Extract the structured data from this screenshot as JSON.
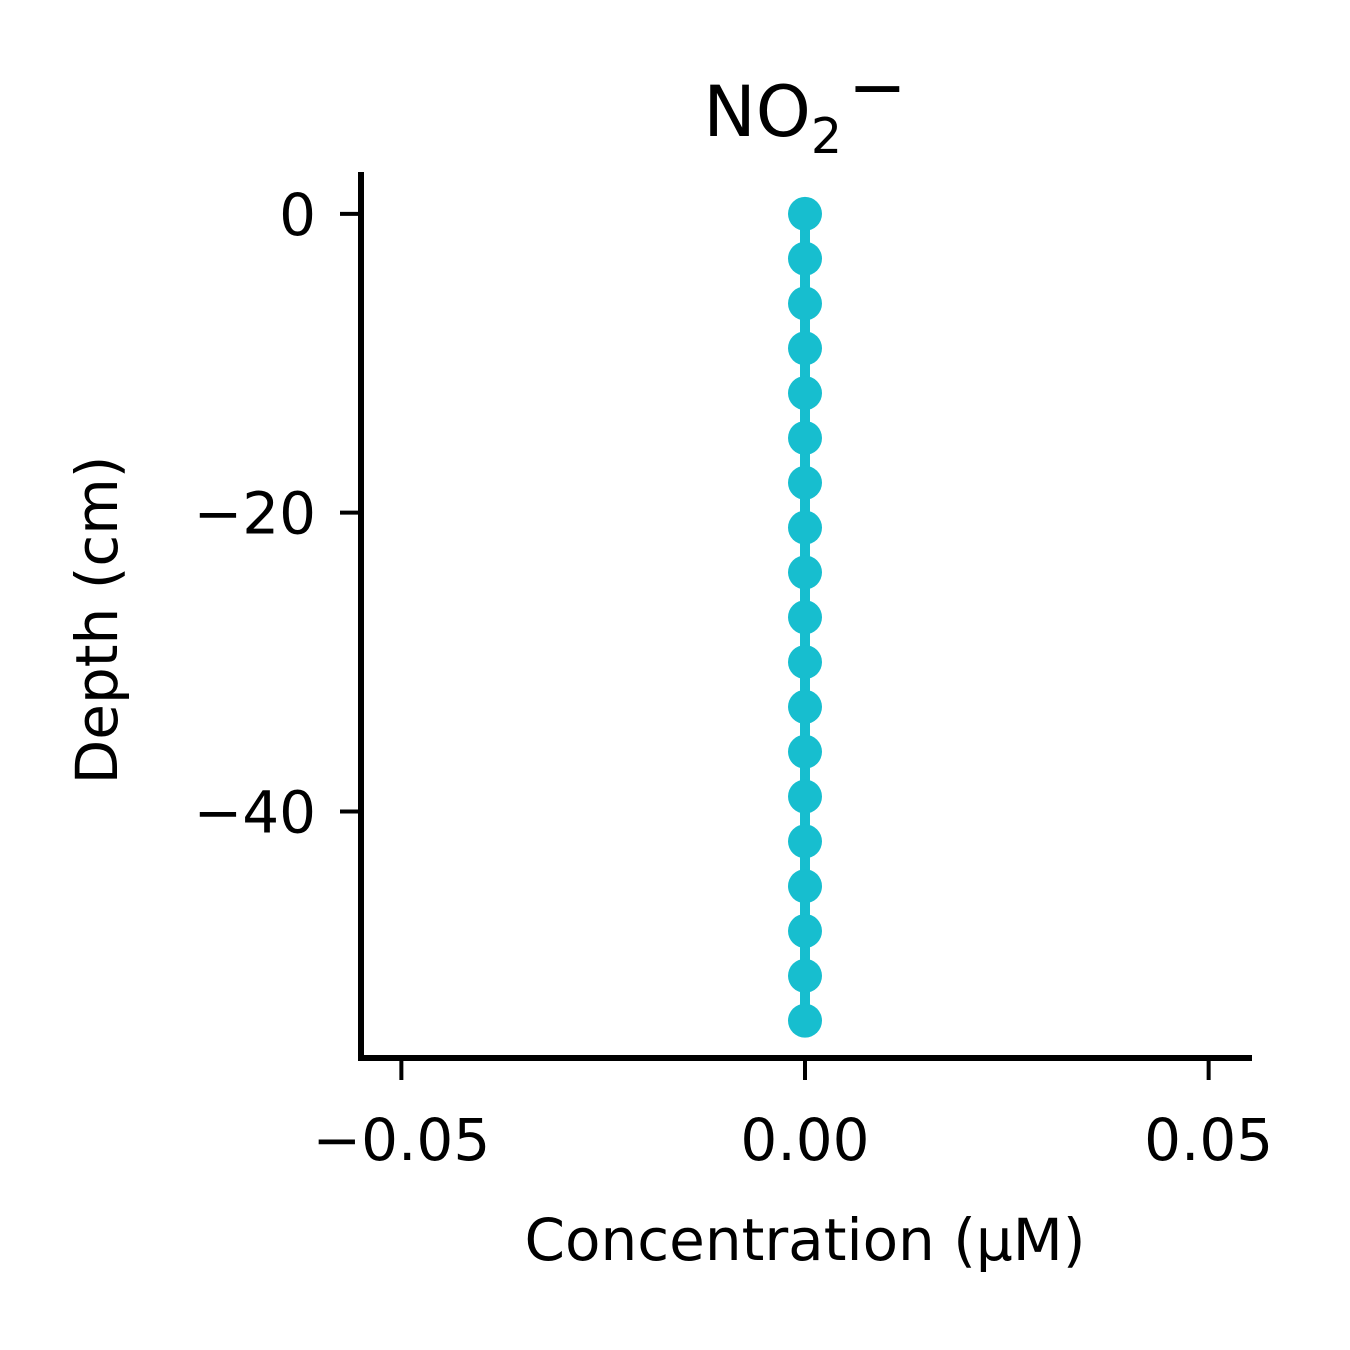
{
  "chart_data": {
    "type": "line",
    "title": "NO₂⁻",
    "title_main": "NO",
    "title_sub": "2",
    "title_sup": "−",
    "xlabel": "Concentration (μM)",
    "ylabel": "Depth (cm)",
    "xlim": [
      -0.055,
      0.055
    ],
    "ylim": [
      -56.5,
      2.8
    ],
    "x_ticks": [
      {
        "value": -0.05,
        "label": "−0.05"
      },
      {
        "value": 0.0,
        "label": "0.00"
      },
      {
        "value": 0.05,
        "label": "0.05"
      }
    ],
    "y_ticks": [
      {
        "value": 0,
        "label": "0"
      },
      {
        "value": -20,
        "label": "−20"
      },
      {
        "value": -40,
        "label": "−40"
      }
    ],
    "grid": false,
    "series": [
      {
        "color": "#17becf",
        "points": [
          {
            "x": 0,
            "y": 0
          },
          {
            "x": 0,
            "y": -3
          },
          {
            "x": 0,
            "y": -6
          },
          {
            "x": 0,
            "y": -9
          },
          {
            "x": 0,
            "y": -12
          },
          {
            "x": 0,
            "y": -15
          },
          {
            "x": 0,
            "y": -18
          },
          {
            "x": 0,
            "y": -21
          },
          {
            "x": 0,
            "y": -24
          },
          {
            "x": 0,
            "y": -27
          },
          {
            "x": 0,
            "y": -30
          },
          {
            "x": 0,
            "y": -33
          },
          {
            "x": 0,
            "y": -36
          },
          {
            "x": 0,
            "y": -39
          },
          {
            "x": 0,
            "y": -42
          },
          {
            "x": 0,
            "y": -45
          },
          {
            "x": 0,
            "y": -48
          },
          {
            "x": 0,
            "y": -51
          },
          {
            "x": 0,
            "y": -54
          }
        ]
      }
    ]
  }
}
